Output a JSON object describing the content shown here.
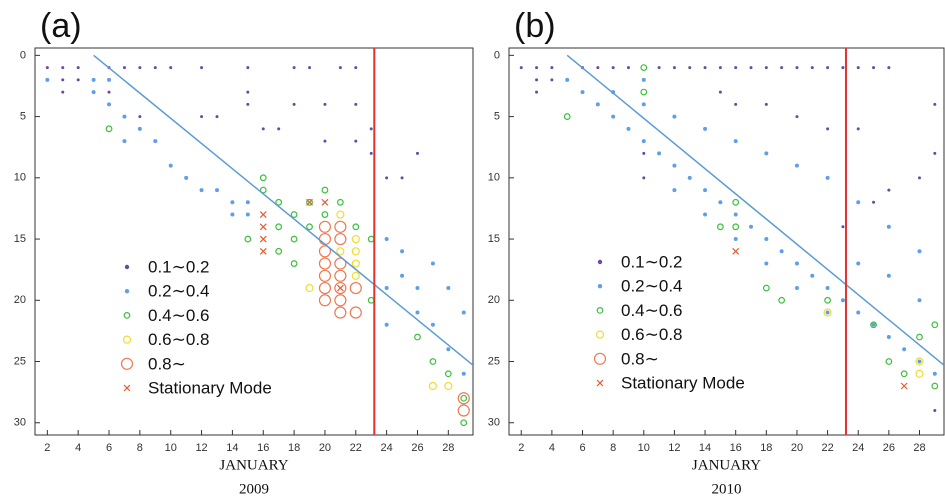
{
  "chart_data": [
    {
      "type": "scatter",
      "panel_label": "(a)",
      "x_label": "JANUARY",
      "x_sublabel": "2009",
      "xlim": [
        1.2,
        29.6
      ],
      "ylim": [
        -0.6,
        31
      ],
      "y_inverted": true,
      "xticks": [
        2,
        4,
        6,
        8,
        10,
        12,
        14,
        16,
        18,
        20,
        22,
        24,
        26,
        28
      ],
      "yticks": [
        0,
        5,
        10,
        15,
        20,
        25,
        30
      ],
      "diagonal": {
        "x": [
          5,
          29.6
        ],
        "y": [
          0,
          25.3
        ],
        "color": "#5b9bd5"
      },
      "vline": {
        "x": 23.2,
        "color": "#e53030"
      },
      "series": [
        {
          "name": "0.1∼0.2",
          "color": "#6a4aa0",
          "marker": "dot",
          "size": 1.5,
          "x": [
            1,
            2,
            3,
            4,
            6,
            7,
            8,
            9,
            10,
            12,
            15,
            18,
            19,
            21,
            22,
            3,
            4,
            3,
            6,
            15,
            15,
            18,
            20,
            22,
            8,
            12,
            13,
            23,
            23,
            26,
            24,
            25,
            16,
            17,
            20,
            22
          ],
          "y": [
            1,
            1,
            1,
            1,
            1,
            1,
            1,
            1,
            1,
            1,
            1,
            1,
            1,
            1,
            1,
            2,
            2,
            3,
            3,
            3,
            4,
            4,
            4,
            4,
            5,
            5,
            5,
            6,
            8,
            8,
            10,
            10,
            6,
            6,
            7,
            7
          ]
        },
        {
          "name": "0.2∼0.4",
          "color": "#5f9fe8",
          "marker": "dot",
          "size": 2,
          "x": [
            1,
            2,
            5,
            5,
            6,
            6,
            7,
            7,
            8,
            9,
            10,
            11,
            12,
            13,
            14,
            15,
            14,
            15,
            24,
            25,
            25,
            26,
            26,
            27,
            28,
            29,
            24,
            24,
            27,
            28,
            29
          ],
          "y": [
            2,
            2,
            2,
            3,
            2,
            4,
            5,
            7,
            6,
            7,
            9,
            10,
            11,
            11,
            12,
            12,
            13,
            13,
            15,
            16,
            18,
            19,
            21,
            22,
            24,
            26,
            19,
            22,
            17,
            19,
            21
          ]
        },
        {
          "name": "0.4∼0.6",
          "color": "#3cc03c",
          "marker": "ring",
          "size": 2.8,
          "x": [
            6,
            16,
            16,
            17,
            17,
            18,
            18,
            19,
            19,
            20,
            20,
            21,
            22,
            15,
            17,
            18,
            23,
            23,
            26,
            27,
            28,
            29,
            29
          ],
          "y": [
            6,
            10,
            11,
            12,
            14,
            13,
            15,
            12,
            14,
            11,
            13,
            12,
            14,
            15,
            16,
            17,
            15,
            20,
            23,
            25,
            26,
            28,
            30
          ]
        },
        {
          "name": "0.6∼0.8",
          "color": "#f0dc30",
          "marker": "ring",
          "size": 3.5,
          "x": [
            19,
            21,
            22,
            22,
            22,
            22,
            21,
            27,
            28
          ],
          "y": [
            19,
            13,
            15,
            16,
            17,
            18,
            16,
            27,
            27
          ]
        },
        {
          "name": "0.8∼",
          "color": "#f07850",
          "marker": "ring",
          "size": 5.5,
          "x": [
            20,
            20,
            20,
            20,
            20,
            20,
            20,
            21,
            21,
            21,
            21,
            21,
            21,
            21,
            22,
            29,
            29,
            22
          ],
          "y": [
            14,
            15,
            16,
            17,
            18,
            19,
            20,
            14,
            15,
            17,
            18,
            19,
            20,
            21,
            21,
            28,
            29,
            19
          ]
        },
        {
          "name": "Stationary Mode",
          "color": "#e85a30",
          "marker": "cross",
          "size": 3,
          "x": [
            16,
            16,
            16,
            16,
            19,
            20,
            21
          ],
          "y": [
            13,
            14,
            15,
            16,
            12,
            12,
            19
          ]
        }
      ]
    },
    {
      "type": "scatter",
      "panel_label": "(b)",
      "x_label": "JANUARY",
      "x_sublabel": "2010",
      "xlim": [
        1.2,
        29.6
      ],
      "ylim": [
        -0.6,
        31
      ],
      "y_inverted": true,
      "xticks": [
        2,
        4,
        6,
        8,
        10,
        12,
        14,
        16,
        18,
        20,
        22,
        24,
        26,
        28
      ],
      "yticks": [
        0,
        5,
        10,
        15,
        20,
        25,
        30
      ],
      "diagonal": {
        "x": [
          5,
          29.6
        ],
        "y": [
          0,
          25.3
        ],
        "color": "#5b9bd5"
      },
      "vline": {
        "x": 23.2,
        "color": "#e53030"
      },
      "series": [
        {
          "name": "0.1∼0.2",
          "color": "#6a4aa0",
          "marker": "dot",
          "size": 1.5,
          "x": [
            1,
            2,
            3,
            4,
            3,
            4,
            3,
            6,
            7,
            8,
            9,
            11,
            12,
            13,
            14,
            15,
            16,
            17,
            18,
            19,
            20,
            21,
            22,
            23,
            24,
            25,
            26,
            15,
            16,
            18,
            20,
            22,
            24,
            29,
            29,
            26,
            28,
            10,
            10,
            23,
            25,
            29
          ],
          "y": [
            1,
            1,
            1,
            1,
            2,
            2,
            3,
            1,
            1,
            1,
            1,
            1,
            1,
            1,
            1,
            1,
            1,
            1,
            1,
            1,
            1,
            1,
            1,
            1,
            1,
            1,
            1,
            3,
            4,
            4,
            5,
            6,
            6,
            4,
            8,
            11,
            10,
            8,
            10,
            14,
            12,
            29
          ]
        },
        {
          "name": "0.2∼0.4",
          "color": "#5f9fe8",
          "marker": "dot",
          "size": 2,
          "x": [
            5,
            6,
            7,
            8,
            9,
            10,
            11,
            12,
            13,
            14,
            15,
            16,
            17,
            18,
            19,
            20,
            21,
            22,
            23,
            24,
            25,
            26,
            27,
            28,
            29,
            12,
            14,
            16,
            18,
            20,
            22,
            8,
            10,
            12,
            14,
            16,
            18,
            20,
            22,
            24,
            26,
            28,
            10,
            26,
            28,
            24
          ],
          "y": [
            2,
            3,
            4,
            5,
            6,
            7,
            8,
            9,
            10,
            11,
            12,
            13,
            14,
            15,
            16,
            17,
            18,
            19,
            20,
            21,
            22,
            23,
            24,
            25,
            26,
            11,
            13,
            15,
            17,
            19,
            21,
            3,
            4,
            5,
            6,
            7,
            8,
            9,
            10,
            12,
            14,
            16,
            2,
            18,
            20,
            17
          ]
        },
        {
          "name": "0.4∼0.6",
          "color": "#3cc03c",
          "marker": "ring",
          "size": 2.8,
          "x": [
            10,
            10,
            5,
            16,
            16,
            15,
            18,
            19,
            22,
            25,
            26,
            28,
            29,
            27,
            29
          ],
          "y": [
            1,
            3,
            5,
            12,
            14,
            14,
            19,
            20,
            20,
            22,
            25,
            23,
            22,
            26,
            27
          ]
        },
        {
          "name": "0.6∼0.8",
          "color": "#f0dc30",
          "marker": "ring",
          "size": 3.5,
          "x": [
            22,
            28,
            28
          ],
          "y": [
            21,
            25,
            26
          ]
        },
        {
          "name": "0.8∼",
          "color": "#f07850",
          "marker": "ring",
          "size": 5.5,
          "x": [],
          "y": []
        },
        {
          "name": "Stationary Mode",
          "color": "#e85a30",
          "marker": "cross",
          "size": 3,
          "x": [
            16,
            27
          ],
          "y": [
            16,
            27
          ]
        }
      ]
    }
  ]
}
